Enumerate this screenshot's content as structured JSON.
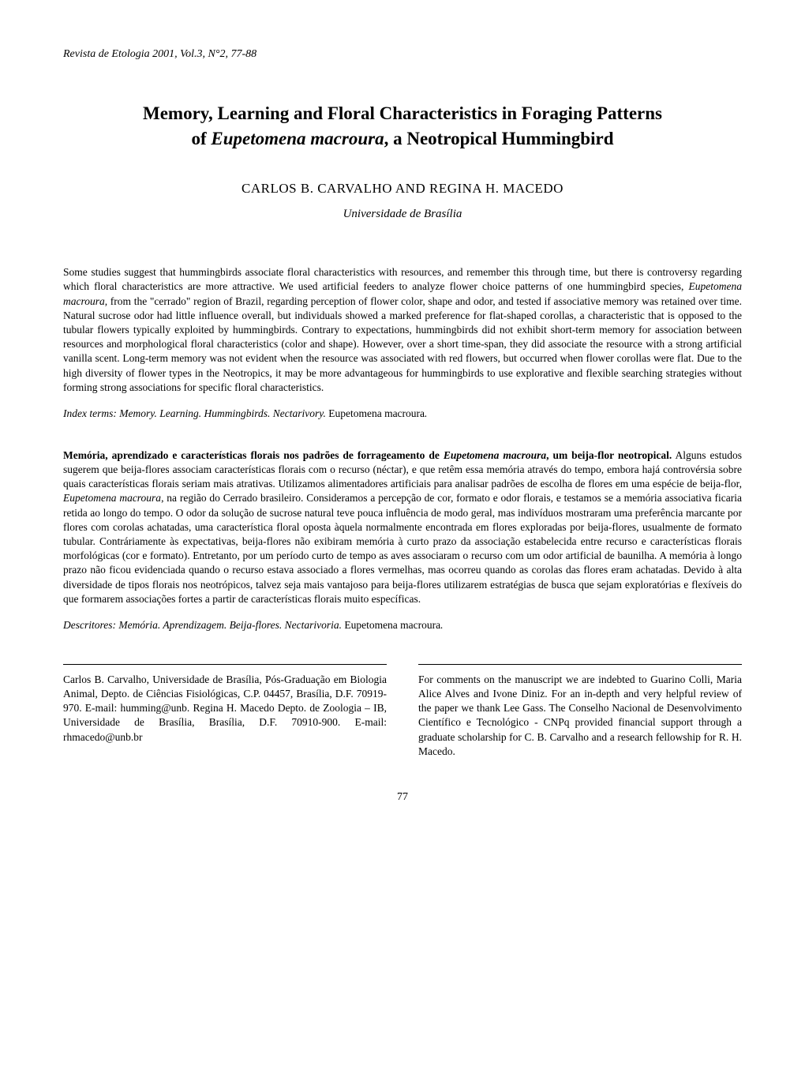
{
  "header": "Revista de Etologia 2001, Vol.3, N°2, 77-88",
  "title_line1": "Memory, Learning and Floral Characteristics in Foraging Patterns",
  "title_line2_prefix": "of ",
  "title_line2_species": "Eupetomena macroura",
  "title_line2_suffix": ", a Neotropical Hummingbird",
  "authors": "CARLOS B. CARVALHO AND REGINA H. MACEDO",
  "affiliation": "Universidade de Brasília",
  "abstract_en_p1": "Some studies suggest that hummingbirds associate floral characteristics with resources, and remember this through time, but there is controversy regarding which floral characteristics are more attractive. We used artificial feeders to analyze flower choice patterns of one hummingbird species, ",
  "abstract_en_species": "Eupetomena macroura",
  "abstract_en_p2": ", from the \"cerrado\" region of Brazil, regarding perception of flower color, shape and odor, and tested if associative memory was retained over time. Natural sucrose odor had little influence overall, but individuals showed a marked preference for flat-shaped corollas, a characteristic that is opposed to the tubular flowers typically exploited by hummingbirds. Contrary to expectations, hummingbirds did not exhibit short-term memory for association between resources and morphological floral characteristics (color and shape). However, over a short time-span, they did associate the resource with a strong artificial vanilla scent. Long-term memory was not evident when the resource was associated with red flowers, but occurred when flower corollas were flat. Due to the high diversity of flower types in the Neotropics, it may be more advantageous for hummingbirds to use explorative and flexible searching strategies without forming strong associations for specific floral characteristics.",
  "index_terms_label": "Index terms: Memory. Learning. Hummingbirds. Nectarivory. ",
  "index_terms_species": "Eupetomena macroura",
  "index_terms_suffix": ".",
  "pt_title": "Memória, aprendizado e características florais nos padrões de forrageamento de ",
  "pt_title_species": "Eupetomena macroura",
  "pt_title_suffix": ", um beija-flor neotropical.",
  "abstract_pt_p1": " Alguns estudos sugerem que beija-flores associam características florais com o recurso (néctar), e que retêm essa memória através do tempo, embora hajá controvérsia sobre quais características florais seriam mais atrativas. Utilizamos alimentadores artificiais para analisar padrões de escolha de flores em uma espécie de beija-flor, ",
  "abstract_pt_species": "Eupetomena macroura",
  "abstract_pt_p2": ", na região do Cerrado brasileiro. Consideramos a percepção de cor, formato e odor florais, e testamos se a memória associativa ficaria retida ao longo do tempo. O odor da solução de sucrose natural teve pouca influência de modo geral, mas indivíduos mostraram uma preferência marcante por flores com corolas achatadas, uma característica floral oposta àquela normalmente encontrada em flores exploradas por beija-flores, usualmente de formato tubular. Contráriamente às expectativas, beija-flores não exibiram memória à curto prazo da associação estabelecida entre recurso e características florais morfológicas (cor e formato). Entretanto, por um período curto de tempo as aves associaram o recurso com um odor artificial de baunilha. A memória à longo prazo não ficou evidenciada quando o recurso estava associado a flores vermelhas, mas ocorreu quando as corolas das flores eram achatadas. Devido à alta diversidade de tipos florais nos neotrópicos, talvez seja mais vantajoso para beija-flores utilizarem estratégias de busca que sejam exploratórias e flexíveis do que formarem associações fortes a partir de características florais muito específicas.",
  "descritores_label": "Descritores: Memória. Aprendizagem. Beija-flores. Nectarivoria. ",
  "descritores_species": "Eupetomena macroura",
  "descritores_suffix": ".",
  "footer_left": "Carlos B. Carvalho, Universidade de Brasília, Pós-Graduação em Biologia Animal, Depto. de Ciências Fisiológicas, C.P. 04457, Brasília, D.F. 70919-970. E-mail: humming@unb. Regina H. Macedo Depto. de Zoologia – IB, Universidade de Brasília, Brasília, D.F. 70910-900. E-mail: rhmacedo@unb.br",
  "footer_right": "For comments on the manuscript we are indebted to Guarino Colli, Maria Alice Alves and Ivone Diniz. For an in-depth and very helpful review of the paper we thank Lee Gass. The Conselho Nacional de Desenvolvimento Científico e Tecnológico - CNPq provided financial support through a graduate scholarship for C. B. Carvalho and a research fellowship for R. H. Macedo.",
  "page_number": "77"
}
